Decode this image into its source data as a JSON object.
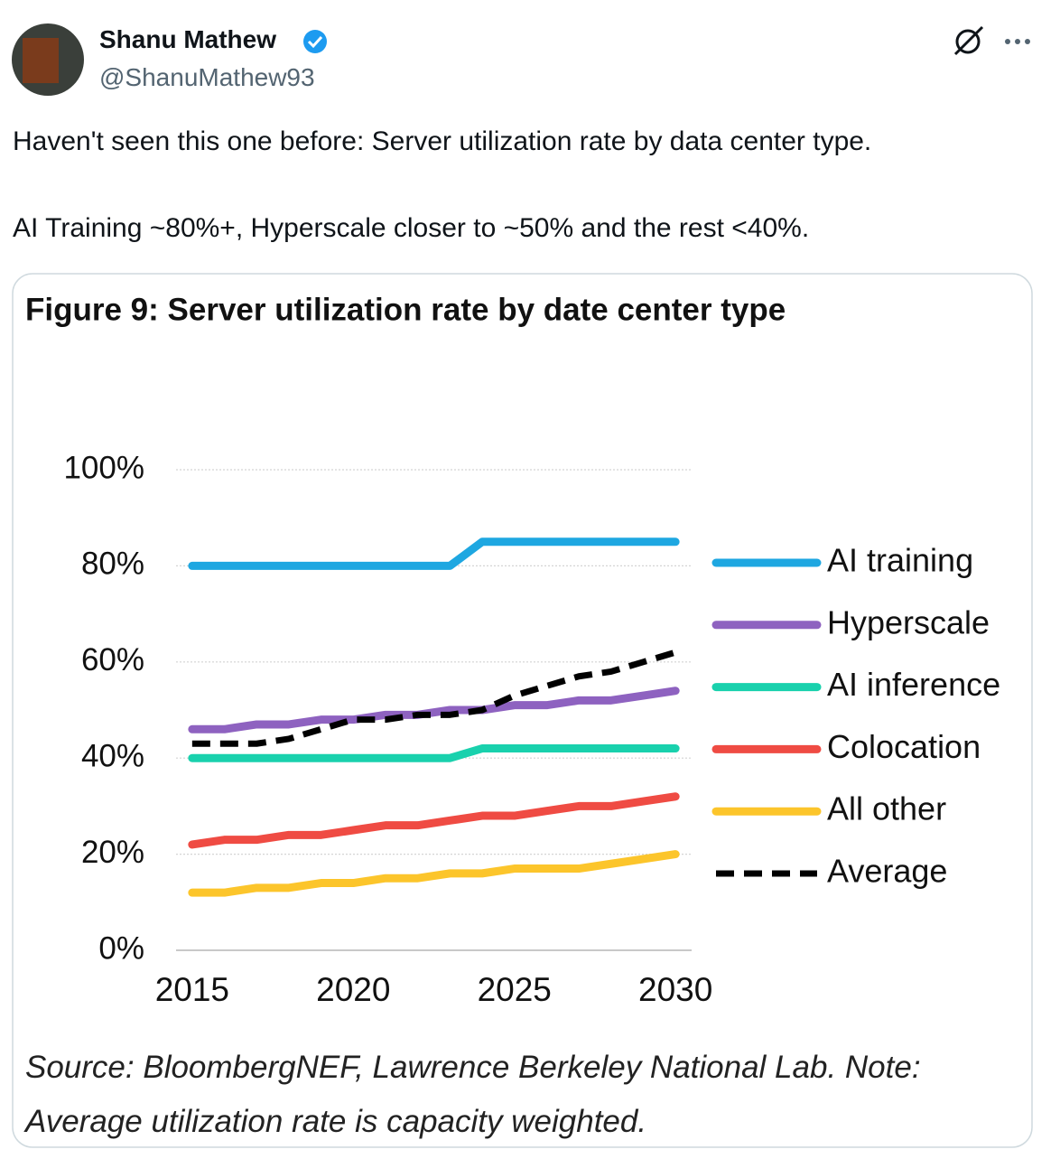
{
  "tweet": {
    "name": "Shanu Mathew",
    "handle": "@ShanuMathew93",
    "text": [
      "Haven't seen this one before: Server utilization rate by data center type.",
      "AI Training ~80%+, Hyperscale closer to ~50% and the rest <40%."
    ]
  },
  "chart_data": {
    "type": "line",
    "title": "Figure 9:  Server utilization rate by date center type",
    "note": "Source: BloombergNEF, Lawrence Berkeley National Lab. Note: Average utilization rate is capacity weighted.",
    "x": [
      2015,
      2016,
      2017,
      2018,
      2019,
      2020,
      2021,
      2022,
      2023,
      2024,
      2025,
      2026,
      2027,
      2028,
      2029,
      2030
    ],
    "xlim": [
      2014.5,
      2030.5
    ],
    "xticks": [
      2015,
      2020,
      2025,
      2030
    ],
    "ylim": [
      0,
      100
    ],
    "yticks": [
      {
        "value": 0,
        "label": "0%"
      },
      {
        "value": 20,
        "label": "20%"
      },
      {
        "value": 40,
        "label": "40%"
      },
      {
        "value": 60,
        "label": "60%"
      },
      {
        "value": 80,
        "label": "80%"
      },
      {
        "value": 100,
        "label": "100%"
      }
    ],
    "grid": true,
    "legend": "right",
    "series": [
      {
        "name": "AI training",
        "color": "#1ea7e1",
        "line_style": "solid",
        "values": [
          80,
          80,
          80,
          80,
          80,
          80,
          80,
          80,
          80,
          85,
          85,
          85,
          85,
          85,
          85,
          85
        ]
      },
      {
        "name": "Hyperscale",
        "color": "#8e62c0",
        "line_style": "solid",
        "values": [
          46,
          46,
          47,
          47,
          48,
          48,
          49,
          49,
          50,
          50,
          51,
          51,
          52,
          52,
          53,
          54
        ]
      },
      {
        "name": "AI inference",
        "color": "#19d1ad",
        "line_style": "solid",
        "values": [
          40,
          40,
          40,
          40,
          40,
          40,
          40,
          40,
          40,
          42,
          42,
          42,
          42,
          42,
          42,
          42
        ]
      },
      {
        "name": "Colocation",
        "color": "#ef4b43",
        "line_style": "solid",
        "values": [
          22,
          23,
          23,
          24,
          24,
          25,
          26,
          26,
          27,
          28,
          28,
          29,
          30,
          30,
          31,
          32
        ]
      },
      {
        "name": "All other",
        "color": "#fcc52b",
        "line_style": "solid",
        "values": [
          12,
          12,
          13,
          13,
          14,
          14,
          15,
          15,
          16,
          16,
          17,
          17,
          17,
          18,
          19,
          20
        ]
      },
      {
        "name": "Average",
        "color": "#000000",
        "line_style": "dashed",
        "values": [
          43,
          43,
          43,
          44,
          46,
          48,
          48,
          49,
          49,
          50,
          53,
          55,
          57,
          58,
          60,
          62
        ]
      }
    ]
  }
}
